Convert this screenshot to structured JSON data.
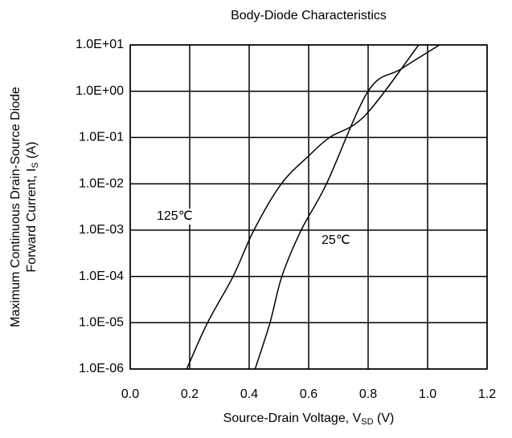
{
  "chart_data": {
    "type": "line",
    "title": "Body-Diode Characteristics",
    "x_label": [
      "Source-Drain Voltage, V",
      "SD",
      " (V)"
    ],
    "y_label": [
      "Maximum Continuous Drain-Source Diode",
      "Forward Current, I",
      "S",
      " (A)"
    ],
    "log_y": true,
    "grid": true,
    "xlim": [
      0,
      1.2
    ],
    "xticks": [
      {
        "value": 0,
        "label": "0.0"
      },
      0.2,
      0.4,
      0.6,
      0.8,
      {
        "value": 1,
        "label": "1.0"
      },
      1.2
    ],
    "ylim": [
      1e-06,
      10
    ],
    "yticks": [
      {
        "value": 1e-06,
        "label": "1.0E-06"
      },
      {
        "value": 1e-05,
        "label": "1.0E-05"
      },
      {
        "value": 0.0001,
        "label": "1.0E-04"
      },
      {
        "value": 0.001,
        "label": "1.0E-03"
      },
      {
        "value": 0.01,
        "label": "1.0E-02"
      },
      {
        "value": 0.1,
        "label": "1.0E-01"
      },
      {
        "value": 1,
        "label": "1.0E+00"
      },
      {
        "value": 10,
        "label": "1.0E+01"
      }
    ],
    "series": [
      {
        "name": "125℃",
        "color": "#000000",
        "x": [
          0.19,
          0.26,
          0.346,
          0.416,
          0.508,
          0.6,
          0.67,
          0.79,
          0.97
        ],
        "values": [
          1e-06,
          1e-05,
          0.0001,
          0.001,
          0.01,
          0.04,
          0.1,
          0.3,
          10
        ]
      },
      {
        "name": "25℃",
        "color": "#000000",
        "x": [
          0.42,
          0.47,
          0.51,
          0.575,
          0.66,
          0.8,
          0.91,
          1.04
        ],
        "values": [
          1e-06,
          1e-05,
          0.0001,
          0.001,
          0.01,
          1,
          3,
          10
        ]
      }
    ]
  }
}
